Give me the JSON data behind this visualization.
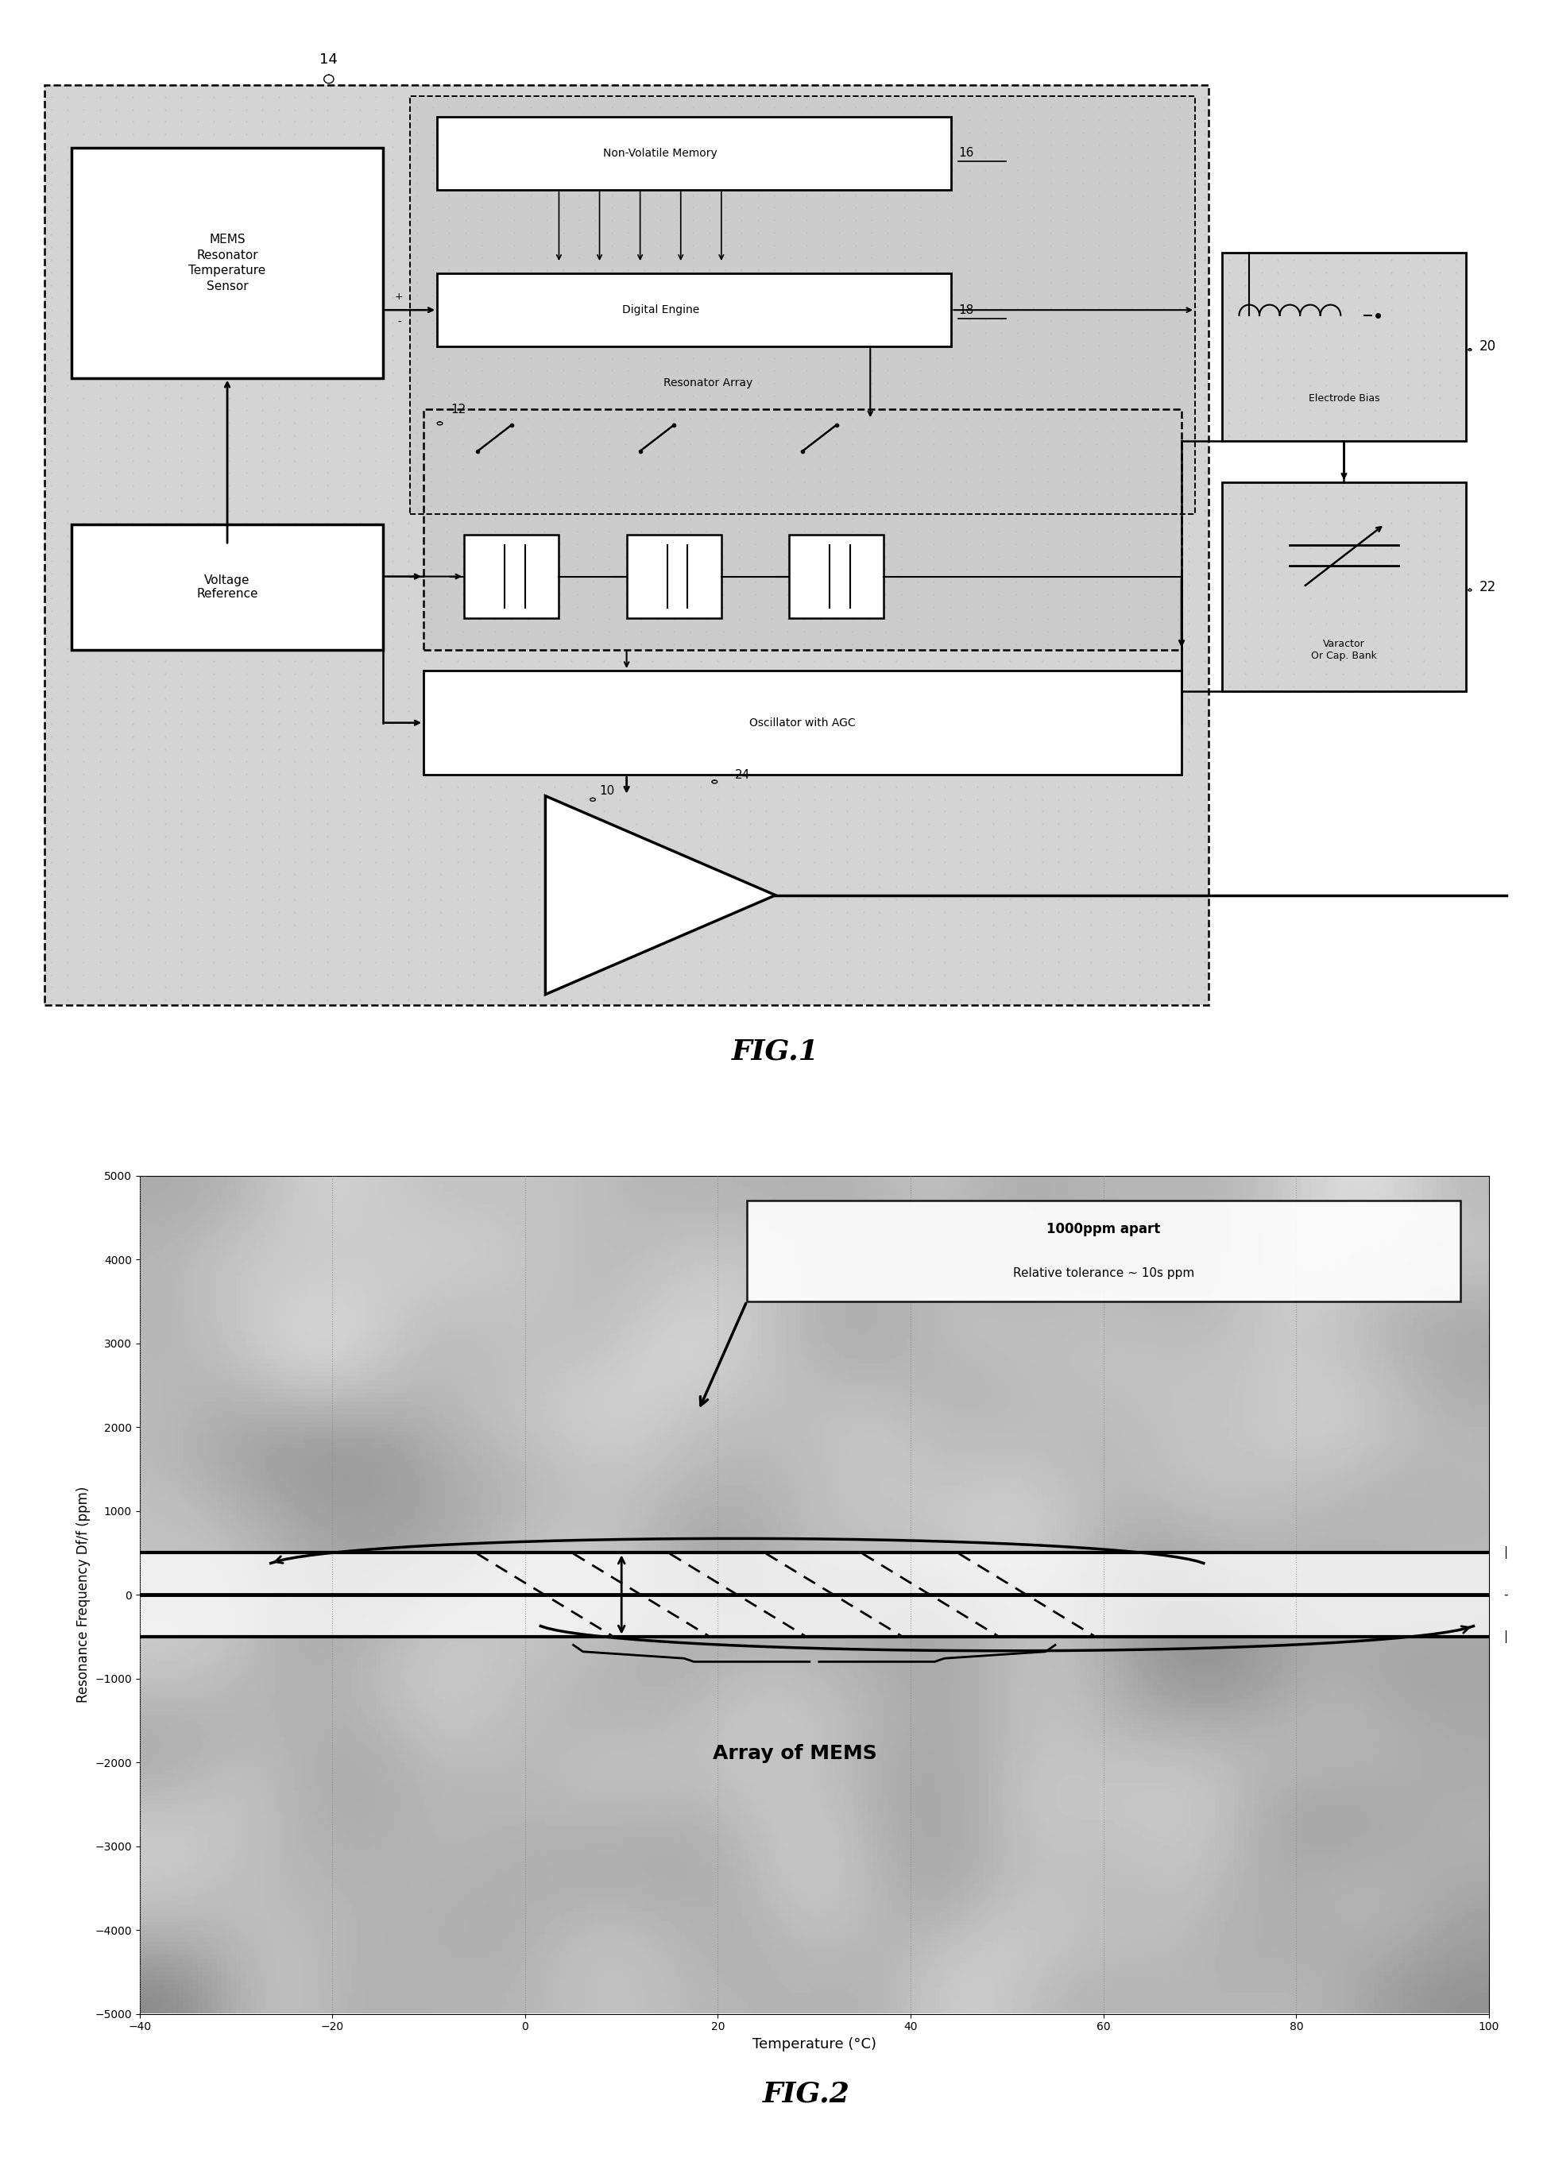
{
  "fig1": {
    "title": "FIG.1",
    "label_14": "14",
    "label_10": "10",
    "label_12": "12",
    "label_16": "16",
    "label_18": "18",
    "label_20": "20",
    "label_22": "22",
    "label_24": "24",
    "box_mems": "MEMS\nResonator\nTemperature\nSensor",
    "box_voltage": "Voltage\nReference",
    "box_nvm": "Non-Volatile Memory",
    "box_de": "Digital Engine",
    "box_ra": "Resonator Array",
    "box_osc": "Oscillator with AGC",
    "box_eb": "Electrode Bias",
    "box_vc": "Varactor\nOr Cap. Bank",
    "bg_color": "#d8d8d8"
  },
  "fig2": {
    "title": "FIG.2",
    "xlabel": "Temperature (°C)",
    "ylabel": "Resonance Frequency Df/f (ppm)",
    "xlim": [
      -40,
      100
    ],
    "ylim": [
      -5000,
      5000
    ],
    "xticks": [
      -40,
      -20,
      0,
      20,
      40,
      60,
      80,
      100
    ],
    "yticks": [
      -5000,
      -4000,
      -3000,
      -2000,
      -1000,
      0,
      1000,
      2000,
      3000,
      4000,
      5000
    ],
    "annotation_text1": "1000ppm apart",
    "annotation_text2": "Relative tolerance ~ 10s ppm",
    "annotation_mems": "Array of MEMS",
    "band_upper": 500,
    "band_lower": -500
  }
}
